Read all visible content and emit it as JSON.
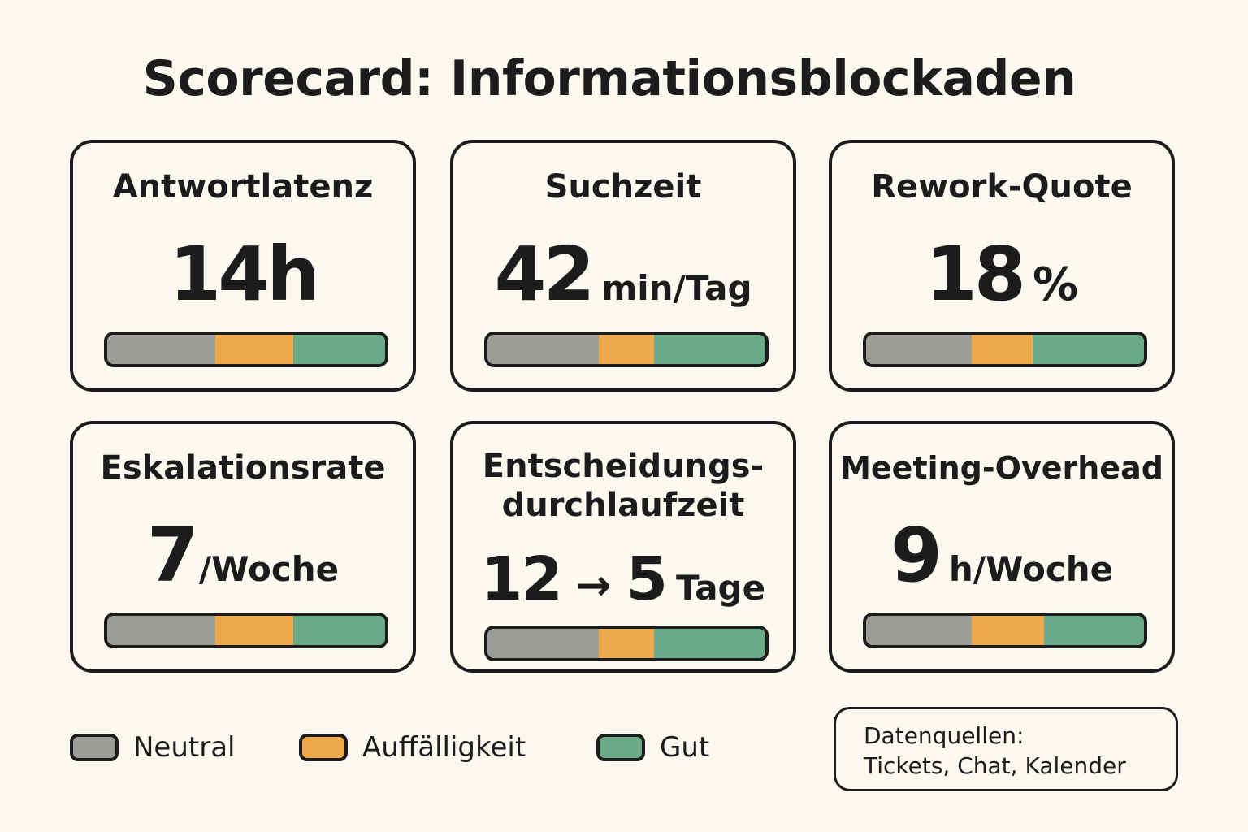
{
  "title": "Scorecard: Informationsblockaden",
  "colors": {
    "neutral": "#9c9c98",
    "warn": "#eea94a",
    "good": "#6aaa88",
    "background": "#fbf8ef",
    "ink": "#1c1c1c"
  },
  "cards": [
    {
      "label": "Antwortlatenz",
      "value": "14h",
      "unit": "",
      "bar_segments": [
        0.39,
        0.28,
        0.33
      ]
    },
    {
      "label": "Suchzeit",
      "value": "42",
      "unit": "min/Tag",
      "bar_segments": [
        0.4,
        0.2,
        0.4
      ]
    },
    {
      "label": "Rework-Quote",
      "value": "18",
      "unit": "%",
      "bar_segments": [
        0.38,
        0.22,
        0.4
      ]
    },
    {
      "label": "Eskalationsrate",
      "value": "7",
      "unit": "/Woche",
      "bar_segments": [
        0.39,
        0.28,
        0.33
      ]
    },
    {
      "label_line1": "Entscheidungs-",
      "label_line2": "durchlaufzeit",
      "value_from": "12",
      "arrow": "→",
      "value_to": "5",
      "unit": "Tage",
      "bar_segments": [
        0.4,
        0.2,
        0.4
      ]
    },
    {
      "label": "Meeting-Overhead",
      "value": "9",
      "unit": "h/Woche",
      "bar_segments": [
        0.38,
        0.26,
        0.36
      ]
    }
  ],
  "legend": [
    {
      "label": "Neutral",
      "color": "#9c9c98"
    },
    {
      "label": "Auffälligkeit",
      "color": "#eea94a"
    },
    {
      "label": "Gut",
      "color": "#6aaa88"
    }
  ],
  "sources": {
    "line1": "Datenquellen:",
    "line2": "Tickets, Chat, Kalender"
  }
}
